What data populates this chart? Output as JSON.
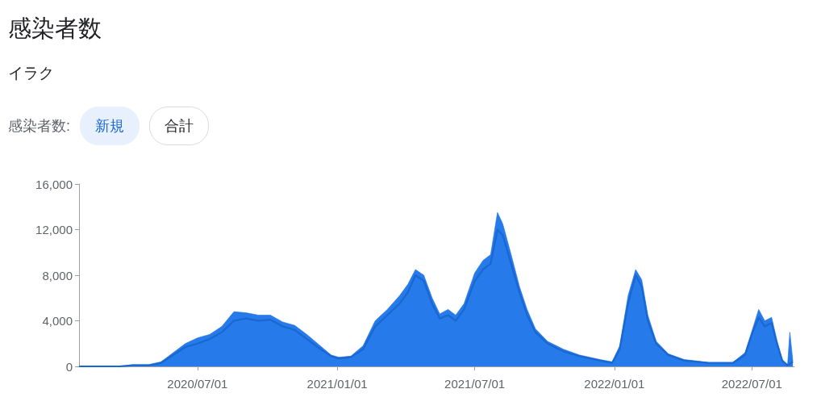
{
  "chart_data": {
    "type": "area",
    "title": "感染者数",
    "subtitle": "イラク",
    "annotations": [
      "感染者数:",
      "新規",
      "合計"
    ],
    "xlim": [
      "2020-01-27",
      "2022-08-26"
    ],
    "xticks": [
      {
        "value": "2020-07-01",
        "label": "2020/07/01"
      },
      {
        "value": "2021-01-01",
        "label": "2021/01/01"
      },
      {
        "value": "2021-07-01",
        "label": "2021/07/01"
      },
      {
        "value": "2022-01-01",
        "label": "2022/01/01"
      },
      {
        "value": "2022-07-01",
        "label": "2022/07/01"
      }
    ],
    "ylim": [
      0,
      16000
    ],
    "yticks": [
      0,
      {
        "value": 4000,
        "label": "4,000"
      },
      {
        "value": 8000,
        "label": "8,000"
      },
      {
        "value": 12000,
        "label": "12,000"
      },
      {
        "value": 16000,
        "label": "16,000"
      }
    ],
    "series": [
      {
        "color": "#1a73e8",
        "x": [
          "2020-01-27",
          "2020-03-20",
          "2020-04-07",
          "2020-04-28",
          "2020-05-14",
          "2020-05-30",
          "2020-06-15",
          "2020-07-01",
          "2020-07-17",
          "2020-08-02",
          "2020-08-18",
          "2020-09-03",
          "2020-09-19",
          "2020-10-05",
          "2020-10-21",
          "2020-11-06",
          "2020-11-22",
          "2020-12-08",
          "2020-12-24",
          "2021-01-03",
          "2021-01-19",
          "2021-02-04",
          "2021-02-20",
          "2021-03-08",
          "2021-03-24",
          "2021-04-04",
          "2021-04-14",
          "2021-04-25",
          "2021-05-06",
          "2021-05-16",
          "2021-05-27",
          "2021-06-06",
          "2021-06-17",
          "2021-07-01",
          "2021-07-12",
          "2021-07-22",
          "2021-07-31",
          "2021-08-07",
          "2021-08-18",
          "2021-08-29",
          "2021-09-08",
          "2021-09-19",
          "2021-10-05",
          "2021-10-26",
          "2021-11-16",
          "2021-12-13",
          "2021-12-29",
          "2022-01-08",
          "2022-01-19",
          "2022-01-29",
          "2022-02-06",
          "2022-02-14",
          "2022-02-25",
          "2022-03-13",
          "2022-04-03",
          "2022-05-05",
          "2022-06-06",
          "2022-06-22",
          "2022-07-02",
          "2022-07-10",
          "2022-07-18",
          "2022-07-27",
          "2022-08-03",
          "2022-08-10",
          "2022-08-17",
          "2022-08-20",
          "2022-08-24"
        ],
        "values": [
          0,
          0,
          150,
          150,
          400,
          1200,
          2000,
          2500,
          2800,
          3500,
          4800,
          4700,
          4500,
          4500,
          3900,
          3600,
          2800,
          1900,
          1000,
          800,
          900,
          1800,
          4000,
          5000,
          6200,
          7200,
          8500,
          8000,
          6000,
          4600,
          5000,
          4500,
          5500,
          8200,
          9300,
          9800,
          13500,
          12500,
          9800,
          7000,
          5000,
          3300,
          2200,
          1500,
          1000,
          600,
          400,
          1800,
          6200,
          8500,
          7600,
          4500,
          2200,
          1100,
          600,
          350,
          350,
          1200,
          3300,
          5000,
          4000,
          4300,
          2300,
          600,
          100,
          3000,
          450
        ]
      },
      {
        "type": "line",
        "color": "#1967d2",
        "x": [
          "2020-01-27",
          "2020-03-20",
          "2020-04-07",
          "2020-04-28",
          "2020-05-14",
          "2020-05-30",
          "2020-06-15",
          "2020-07-01",
          "2020-07-17",
          "2020-08-02",
          "2020-08-18",
          "2020-09-03",
          "2020-09-19",
          "2020-10-05",
          "2020-10-21",
          "2020-11-06",
          "2020-11-22",
          "2020-12-08",
          "2020-12-24",
          "2021-01-03",
          "2021-01-19",
          "2021-02-04",
          "2021-02-20",
          "2021-03-08",
          "2021-03-24",
          "2021-04-04",
          "2021-04-14",
          "2021-04-25",
          "2021-05-06",
          "2021-05-16",
          "2021-05-27",
          "2021-06-06",
          "2021-06-17",
          "2021-07-01",
          "2021-07-12",
          "2021-07-22",
          "2021-07-31",
          "2021-08-07",
          "2021-08-18",
          "2021-08-29",
          "2021-09-08",
          "2021-09-19",
          "2021-10-05",
          "2021-10-26",
          "2021-11-16",
          "2021-12-13",
          "2021-12-29",
          "2022-01-08",
          "2022-01-19",
          "2022-01-29",
          "2022-02-06",
          "2022-02-14",
          "2022-02-25",
          "2022-03-13",
          "2022-04-03",
          "2022-05-05",
          "2022-06-06",
          "2022-06-22",
          "2022-07-02",
          "2022-07-10",
          "2022-07-18",
          "2022-07-27",
          "2022-08-03",
          "2022-08-10",
          "2022-08-17",
          "2022-08-24"
        ],
        "values": [
          0,
          0,
          100,
          100,
          300,
          1000,
          1700,
          2000,
          2400,
          3000,
          4000,
          4200,
          4000,
          4100,
          3500,
          3200,
          2400,
          1600,
          900,
          700,
          800,
          1500,
          3500,
          4500,
          5500,
          6500,
          8000,
          7500,
          5500,
          4200,
          4500,
          4000,
          5000,
          7500,
          8500,
          9000,
          12000,
          11500,
          9000,
          6500,
          4500,
          3000,
          2000,
          1300,
          900,
          500,
          300,
          1500,
          5500,
          8000,
          7000,
          4000,
          2000,
          1000,
          500,
          300,
          300,
          1000,
          3000,
          4300,
          3500,
          3800,
          2000,
          500,
          100,
          400
        ]
      }
    ]
  }
}
